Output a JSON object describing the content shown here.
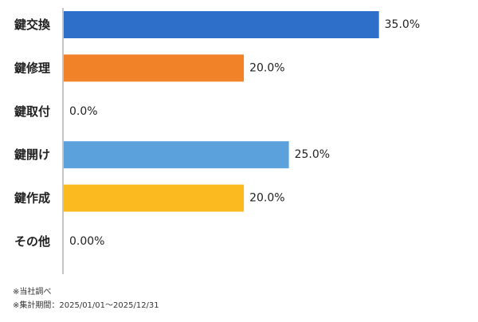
{
  "chart_data": {
    "type": "bar",
    "orientation": "horizontal",
    "title": "",
    "xlabel": "",
    "ylabel": "",
    "categories": [
      "鍵交換",
      "鍵修理",
      "鍵取付",
      "鍵開け",
      "鍵作成",
      "その他"
    ],
    "values": [
      35.0,
      20.0,
      0.0,
      25.0,
      20.0,
      0.0
    ],
    "value_labels": [
      "35.0%",
      "20.0%",
      "0.0%",
      "25.0%",
      "20.0%",
      "0.00%"
    ],
    "colors": [
      "#2e6fca",
      "#f28228",
      "#2e6fca",
      "#5ba2dd",
      "#fcba21",
      "#2e6fca"
    ],
    "xlim": [
      0,
      46
    ],
    "grid": false,
    "legend": "none"
  },
  "notes": {
    "line1": "※当社調べ",
    "line2": "※集計期間：2025/01/01～2025/12/31"
  }
}
